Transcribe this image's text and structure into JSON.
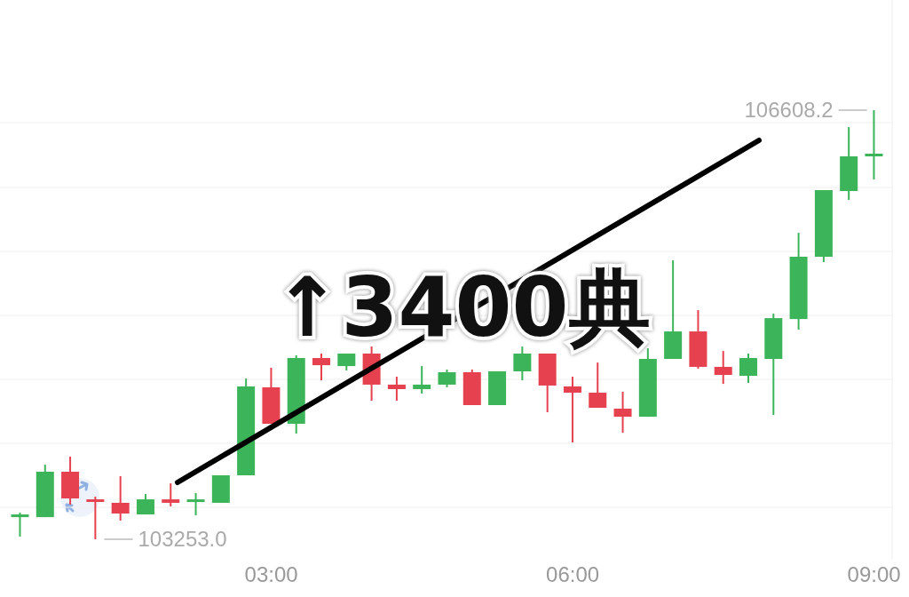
{
  "chart_data": {
    "type": "candlestick",
    "x": [
      0.5,
      0.75,
      1,
      1.25,
      1.5,
      1.75,
      2,
      2.25,
      2.5,
      2.75,
      3,
      3.25,
      3.5,
      3.75,
      4,
      4.25,
      4.5,
      4.75,
      5,
      5.25,
      5.5,
      5.75,
      6,
      6.25,
      6.5,
      6.75,
      7,
      7.25,
      7.5,
      7.75,
      8,
      8.25,
      8.5,
      8.75,
      9
    ],
    "ohlc": [
      [
        103426,
        103461,
        103274,
        103447
      ],
      [
        103426,
        103836,
        103426,
        103781
      ],
      [
        103781,
        103899,
        103524,
        103572
      ],
      [
        103565,
        103586,
        103253.0,
        103545
      ],
      [
        103538,
        103746,
        103399,
        103454
      ],
      [
        103447,
        103607,
        103447,
        103565
      ],
      [
        103565,
        103690,
        103510,
        103538
      ],
      [
        103544,
        103614,
        103440,
        103565
      ],
      [
        103538,
        103753,
        103538,
        103753
      ],
      [
        103753,
        104510,
        103753,
        104448
      ],
      [
        104441,
        104594,
        104156,
        104156
      ],
      [
        104156,
        104691,
        104079,
        104670
      ],
      [
        104670,
        104705,
        104496,
        104614
      ],
      [
        104607,
        104705,
        104573,
        104705
      ],
      [
        104705,
        104760,
        104336,
        104462
      ],
      [
        104462,
        104524,
        104336,
        104427
      ],
      [
        104427,
        104608,
        104392,
        104462
      ],
      [
        104462,
        104580,
        104441,
        104559
      ],
      [
        104559,
        104580,
        104302,
        104302
      ],
      [
        104302,
        104566,
        104302,
        104566
      ],
      [
        104566,
        104760,
        104496,
        104705
      ],
      [
        104705,
        104705,
        104246,
        104455
      ],
      [
        104448,
        104524,
        104010,
        104399
      ],
      [
        104399,
        104635,
        104281,
        104281
      ],
      [
        104274,
        104406,
        104086,
        104211
      ],
      [
        104211,
        104746,
        104211,
        104663
      ],
      [
        104663,
        105434,
        104663,
        104878
      ],
      [
        104878,
        105045,
        104587,
        104601
      ],
      [
        104601,
        104725,
        104468,
        104538
      ],
      [
        104531,
        104705,
        104475,
        104670
      ],
      [
        104663,
        105017,
        104225,
        104982
      ],
      [
        104975,
        105649,
        104892,
        105462
      ],
      [
        105462,
        105983,
        105420,
        105983
      ],
      [
        105976,
        106476,
        105906,
        106247
      ],
      [
        106247,
        106608.2,
        106066,
        106268
      ]
    ],
    "colors": [
      "#3cb45a",
      "#3cb45a",
      "#e5414f",
      "#e5414f",
      "#e5414f",
      "#3cb45a",
      "#e5414f",
      "#3cb45a",
      "#3cb45a",
      "#3cb45a",
      "#e5414f",
      "#3cb45a",
      "#e5414f",
      "#3cb45a",
      "#e5414f",
      "#e5414f",
      "#3cb45a",
      "#3cb45a",
      "#e5414f",
      "#3cb45a",
      "#3cb45a",
      "#e5414f",
      "#e5414f",
      "#e5414f",
      "#e5414f",
      "#3cb45a",
      "#3cb45a",
      "#e5414f",
      "#e5414f",
      "#3cb45a",
      "#3cb45a",
      "#3cb45a",
      "#3cb45a",
      "#3cb45a",
      "#3cb45a"
    ],
    "xlim": [
      0.3,
      9.18
    ],
    "xticks": [
      {
        "value": 3,
        "label": "03:00"
      },
      {
        "value": 6,
        "label": "06:00"
      },
      {
        "value": 9,
        "label": "09:00"
      }
    ],
    "tick_labels": "x",
    "grid": "y",
    "annotations": [
      {
        "text": "106608.2",
        "x": 9,
        "y": 106608.2
      },
      {
        "text": "103253.0",
        "x": 1.25,
        "y": 103253.0
      },
      "↑3400典"
    ]
  }
}
